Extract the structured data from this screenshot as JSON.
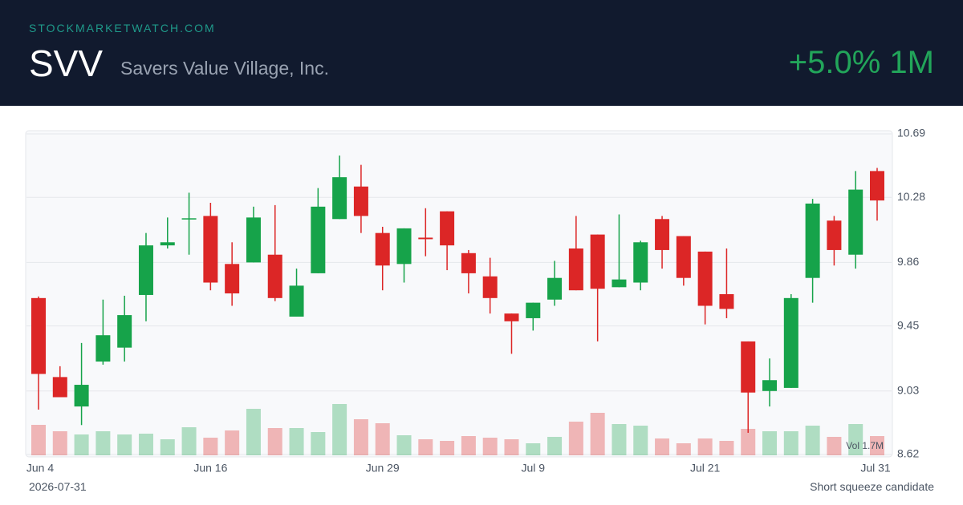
{
  "header": {
    "site": "STOCKMARKETWATCH.COM",
    "ticker": "SVV",
    "company": "Savers Value Village, Inc.",
    "change": "+5.0% 1M"
  },
  "chart_data": {
    "type": "candlestick",
    "categories": [
      "Jun 4",
      null,
      null,
      null,
      null,
      null,
      null,
      null,
      "Jun 16",
      null,
      null,
      null,
      null,
      null,
      null,
      null,
      "Jun 29",
      null,
      null,
      null,
      null,
      null,
      null,
      "Jul 9",
      null,
      null,
      null,
      null,
      null,
      null,
      null,
      "Jul 21",
      null,
      null,
      null,
      null,
      null,
      null,
      null,
      "Jul 31"
    ],
    "open": [
      9.63,
      9.12,
      8.93,
      9.22,
      9.31,
      9.65,
      9.97,
      10.14,
      10.16,
      9.85,
      9.86,
      9.91,
      9.51,
      9.79,
      10.14,
      10.35,
      10.05,
      9.85,
      10.02,
      10.19,
      9.92,
      9.77,
      9.53,
      9.5,
      9.62,
      9.95,
      10.04,
      9.7,
      9.73,
      10.14,
      10.03,
      9.93,
      9.655,
      9.35,
      9.03,
      9.05,
      9.76,
      10.13,
      9.91,
      10.45
    ],
    "high": [
      9.64,
      9.19,
      9.34,
      9.62,
      9.645,
      10.05,
      10.15,
      10.31,
      10.245,
      9.99,
      10.22,
      10.23,
      9.82,
      10.34,
      10.55,
      10.49,
      10.09,
      10.08,
      10.21,
      10.19,
      9.94,
      9.89,
      9.53,
      9.6,
      9.87,
      10.16,
      10.04,
      10.17,
      10.0,
      10.16,
      10.03,
      9.93,
      9.95,
      9.35,
      9.24,
      9.655,
      10.27,
      10.16,
      10.45,
      10.47
    ],
    "low": [
      8.91,
      8.99,
      8.81,
      9.2,
      9.22,
      9.48,
      9.95,
      9.91,
      9.68,
      9.58,
      9.86,
      9.61,
      9.51,
      9.79,
      10.14,
      10.05,
      9.68,
      9.73,
      9.9,
      9.81,
      9.66,
      9.53,
      9.27,
      9.42,
      9.58,
      9.68,
      9.35,
      9.7,
      9.68,
      9.82,
      9.71,
      9.46,
      9.5,
      8.76,
      8.93,
      9.05,
      9.6,
      9.84,
      9.82,
      10.13
    ],
    "close": [
      9.14,
      8.99,
      9.07,
      9.39,
      9.52,
      9.97,
      9.99,
      10.145,
      9.73,
      9.66,
      10.15,
      9.63,
      9.71,
      10.22,
      10.41,
      10.16,
      9.84,
      10.08,
      10.01,
      9.97,
      9.79,
      9.63,
      9.48,
      9.6,
      9.76,
      9.68,
      9.69,
      9.75,
      9.99,
      9.94,
      9.76,
      9.58,
      9.56,
      9.02,
      9.1,
      9.63,
      10.24,
      9.94,
      10.33,
      10.26
    ],
    "volume": [
      1140000,
      900000,
      780000,
      900000,
      780000,
      810000,
      600000,
      1050000,
      660000,
      930000,
      1740000,
      1020000,
      1020000,
      870000,
      1920000,
      1350000,
      1200000,
      750000,
      600000,
      540000,
      720000,
      660000,
      600000,
      450000,
      690000,
      1260000,
      1590000,
      1170000,
      1110000,
      630000,
      450000,
      630000,
      540000,
      990000,
      900000,
      900000,
      1110000,
      690000,
      1170000,
      720000
    ],
    "volume_label": "Vol 1.7M",
    "ylim": [
      8.62,
      10.69
    ],
    "yticks": [
      8.62,
      9.03,
      9.45,
      9.86,
      10.28,
      10.69
    ],
    "grid": true,
    "up_color": "#16a34a",
    "down_color": "#dc2626"
  },
  "footer": {
    "date": "2026-07-31",
    "note": "Short squeeze candidate"
  }
}
